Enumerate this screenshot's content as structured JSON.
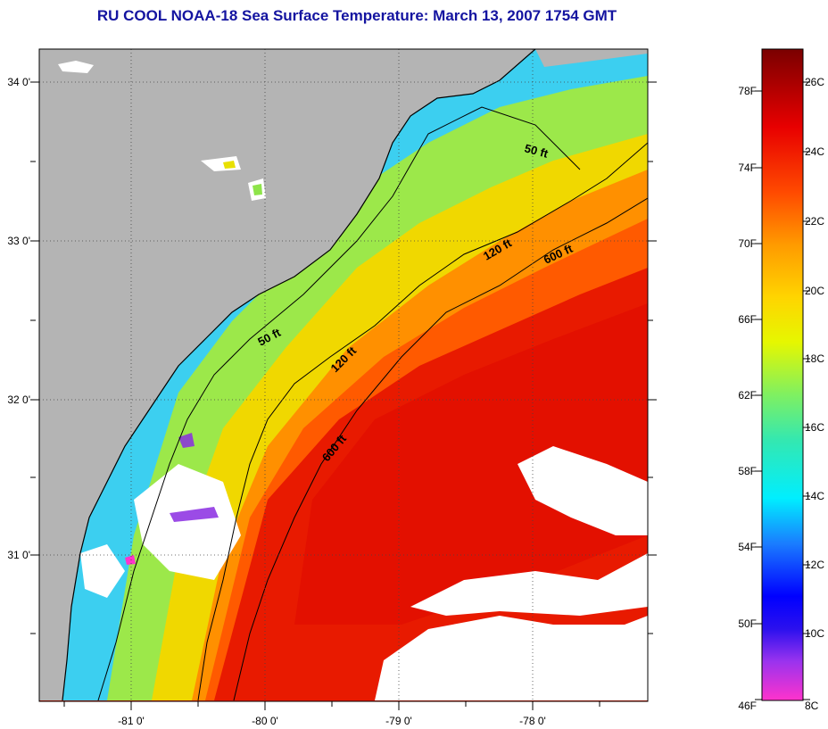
{
  "title": "RU COOL  NOAA-18  Sea Surface Temperature:  March 13, 2007 1754 GMT",
  "map": {
    "lat_labels": [
      "34 0'",
      "33 0'",
      "32 0'",
      "31 0'"
    ],
    "lon_labels": [
      "-81 0'",
      "-80 0'",
      "-79 0'",
      "-78 0'"
    ],
    "contour_labels": {
      "c50_north": "50 ft",
      "c50_south": "50 ft",
      "c120_north": "120 ft",
      "c120_south": "120 ft",
      "c600_north": "600 ft",
      "c600_south": "600 ft"
    },
    "colors": {
      "land": "#b4b4b4",
      "cloud": "#ffffff",
      "coast": "#000000"
    }
  },
  "colorbar": {
    "fahrenheit_labels": [
      "78F",
      "74F",
      "70F",
      "66F",
      "62F",
      "58F",
      "54F",
      "50F",
      "46F"
    ],
    "celsius_labels": [
      "26C",
      "24C",
      "22C",
      "20C",
      "18C",
      "16C",
      "14C",
      "12C",
      "10C",
      "8C"
    ]
  }
}
